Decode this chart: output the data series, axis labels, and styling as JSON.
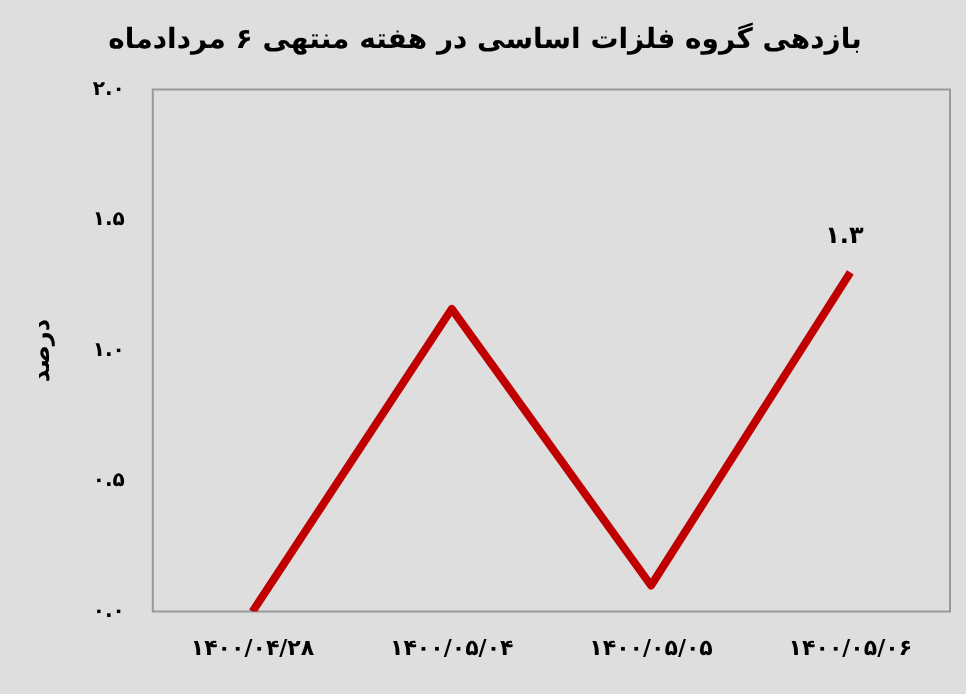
{
  "chart_data": {
    "type": "line",
    "title": "بازدهی گروه فلزات اساسی در هفته منتهی ۶ مردادماه",
    "ylabel": "درصد",
    "categories": [
      "۱۴۰۰/۰۴/۲۸",
      "۱۴۰۰/۰۵/۰۴",
      "۱۴۰۰/۰۵/۰۵",
      "۱۴۰۰/۰۵/۰۶"
    ],
    "series": [
      {
        "color": "#c00000",
        "values": [
          0,
          1.16,
          0.1,
          1.3
        ],
        "value_labels": [
          null,
          null,
          null,
          "۱.۳"
        ]
      }
    ],
    "ylim": [
      0,
      2
    ],
    "yticks": [
      {
        "value": 0,
        "label": "۰.۰"
      },
      {
        "value": 0.5,
        "label": "۰.۵"
      },
      {
        "value": 1,
        "label": "۱.۰"
      },
      {
        "value": 1.5,
        "label": "۱.۵"
      },
      {
        "value": 2,
        "label": "۲.۰"
      }
    ],
    "grid": false,
    "legend": false,
    "marker": "none",
    "line_style": "solid"
  }
}
